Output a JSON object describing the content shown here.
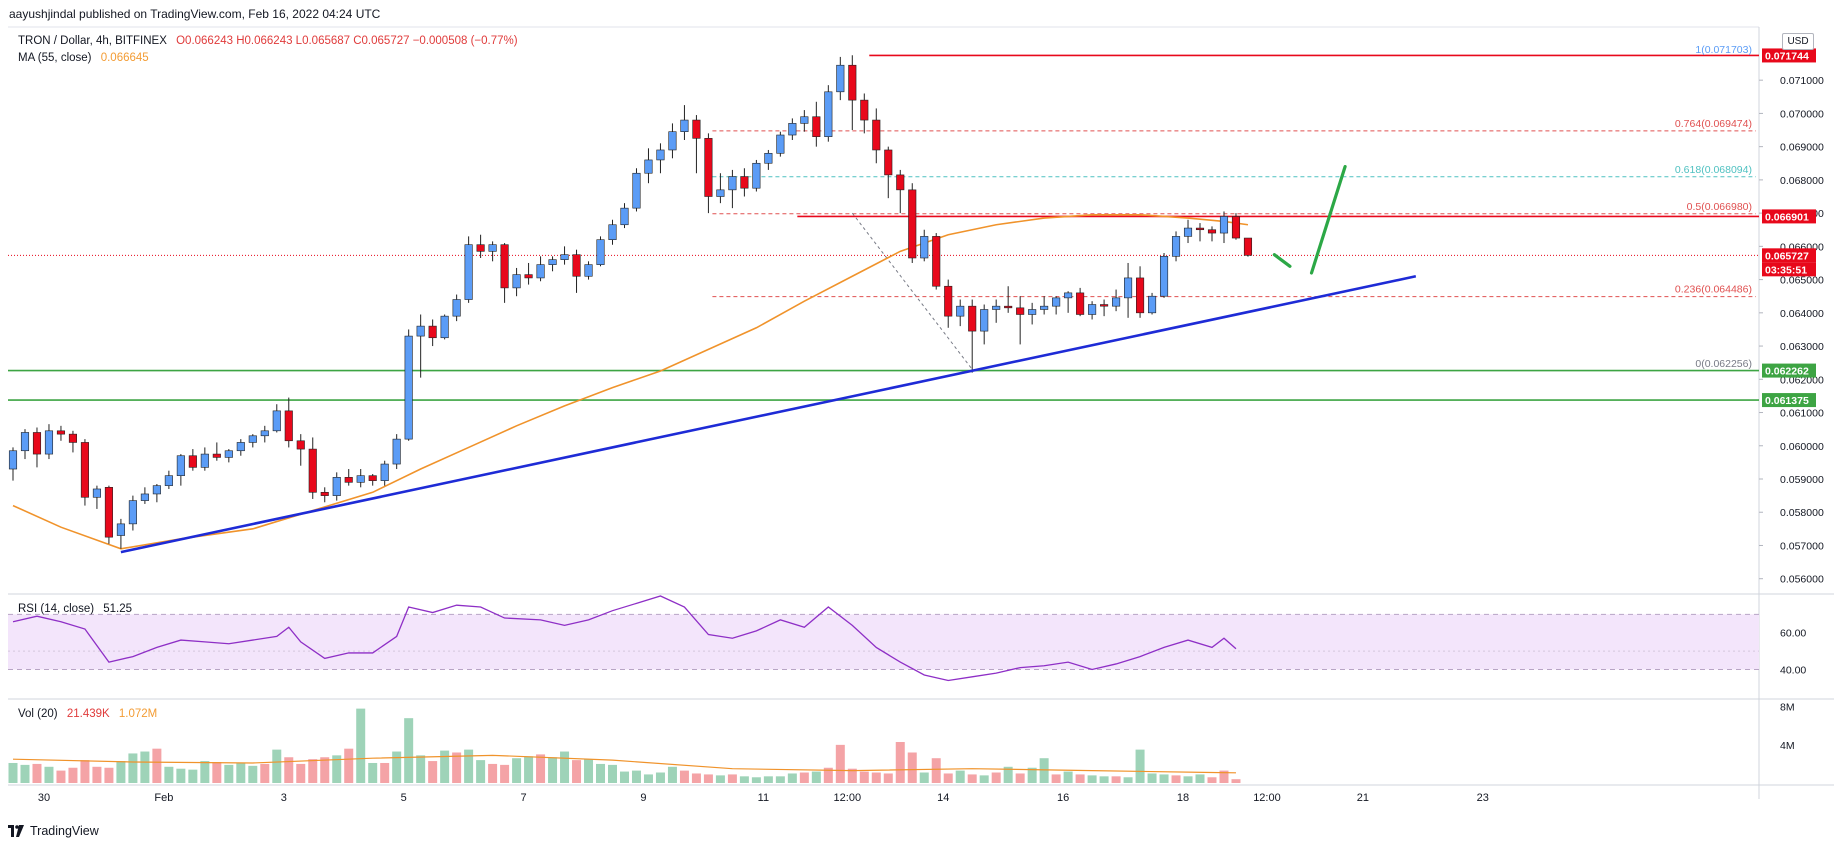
{
  "header": {
    "publisher_line": "aayushjindal published on TradingView.com, Feb 16, 2022 04:24 UTC"
  },
  "legend": {
    "symbol": "TRON / Dollar, 4h, BITFINEX",
    "ohlc": "O0.066243 H0.066243 L0.065687 C0.065727 −0.000508 (−0.77%)",
    "ma_label": "MA (55, close)",
    "ma_value": "0.066645",
    "rsi_label": "RSI (14, close)",
    "rsi_value": "51.25",
    "vol_label": "Vol (20)",
    "vol_value": "21.439K",
    "vol_ma_value": "1.072M"
  },
  "currency_button": "USD",
  "footer": {
    "brand": "TradingView"
  },
  "colors": {
    "up": "#5b9cf6",
    "down": "#e8081b",
    "ma": "#f0932b",
    "trendline": "#1e2bd6",
    "horizontal_red": "#e8081b",
    "horizontal_green": "#3da443",
    "fib_red": "#e05050",
    "fib_teal": "#4fc1c1",
    "rsi_line": "#8e2fc6",
    "rsi_band": "#f3e5fb",
    "vol_up": "#9ed3b8",
    "vol_down": "#f4a3a6",
    "arrow": "#2ca846"
  },
  "chart_data": {
    "type": "candlestick",
    "title": "TRON / Dollar, 4h, BITFINEX",
    "ylim": [
      0.0556,
      0.0726
    ],
    "y_ticks": [
      "0.071000",
      "0.070000",
      "0.069000",
      "0.068000",
      "0.067000",
      "0.066000",
      "0.065000",
      "0.064000",
      "0.063000",
      "0.062000",
      "0.061000",
      "0.060000",
      "0.059000",
      "0.058000",
      "0.057000",
      "0.056000"
    ],
    "x_ticks": [
      "30",
      "Feb",
      "3",
      "5",
      "7",
      "9",
      "11",
      "12:00",
      "14",
      "16",
      "18",
      "12:00",
      "21",
      "23"
    ],
    "price_labels": [
      {
        "value": "0.071744",
        "color": "#e8081b"
      },
      {
        "value": "0.066901",
        "color": "#e8081b"
      },
      {
        "value": "0.065727",
        "color": "#e8081b"
      },
      {
        "value": "03:35:51",
        "color": "#e8081b"
      },
      {
        "value": "0.062262",
        "color": "#3da443"
      },
      {
        "value": "0.061375",
        "color": "#3da443"
      }
    ],
    "fib_levels": [
      {
        "ratio": "1",
        "text": "1(0.071703)",
        "price": 0.071703,
        "color": "#5b9cf6"
      },
      {
        "ratio": "0.764",
        "text": "0.764(0.069474)",
        "price": 0.069474,
        "color": "#e05050"
      },
      {
        "ratio": "0.618",
        "text": "0.618(0.068094)",
        "price": 0.068094,
        "color": "#4fc1c1"
      },
      {
        "ratio": "0.5",
        "text": "0.5(0.066980)",
        "price": 0.06698,
        "color": "#e05050"
      },
      {
        "ratio": "0.236",
        "text": "0.236(0.064486)",
        "price": 0.064486,
        "color": "#e05050"
      },
      {
        "ratio": "0",
        "text": "0(0.062256)",
        "price": 0.062256,
        "color": "#787b86"
      }
    ],
    "horizontal_lines": [
      {
        "price": 0.071744,
        "color": "#e8081b",
        "start_bar": 72
      },
      {
        "price": 0.066901,
        "color": "#e8081b",
        "start_bar": 66
      },
      {
        "price": 0.062262,
        "color": "#3da443",
        "start_bar": 0
      },
      {
        "price": 0.061375,
        "color": "#3da443",
        "start_bar": 0
      }
    ],
    "trendline": {
      "from": {
        "bar": 9,
        "price": 0.0568
      },
      "to": {
        "bar": 117,
        "price": 0.0651
      }
    },
    "candles": [
      [
        0.0593,
        0.05995,
        0.05895,
        0.05985
      ],
      [
        0.05985,
        0.0605,
        0.0596,
        0.0604
      ],
      [
        0.0604,
        0.06055,
        0.05935,
        0.05975
      ],
      [
        0.05975,
        0.06065,
        0.0596,
        0.06045
      ],
      [
        0.06045,
        0.0606,
        0.06015,
        0.06035
      ],
      [
        0.06035,
        0.06045,
        0.0598,
        0.0601
      ],
      [
        0.0601,
        0.0602,
        0.0582,
        0.05845
      ],
      [
        0.05845,
        0.0588,
        0.0581,
        0.0587
      ],
      [
        0.05875,
        0.0588,
        0.05705,
        0.05725
      ],
      [
        0.0573,
        0.0578,
        0.0569,
        0.05765
      ],
      [
        0.05765,
        0.0585,
        0.05745,
        0.05835
      ],
      [
        0.05835,
        0.05875,
        0.05825,
        0.05855
      ],
      [
        0.05855,
        0.05885,
        0.0583,
        0.0588
      ],
      [
        0.0588,
        0.05925,
        0.0587,
        0.0591
      ],
      [
        0.0591,
        0.05975,
        0.0588,
        0.0597
      ],
      [
        0.0597,
        0.0599,
        0.05925,
        0.05935
      ],
      [
        0.05935,
        0.05995,
        0.05925,
        0.05975
      ],
      [
        0.05975,
        0.0601,
        0.05955,
        0.05965
      ],
      [
        0.05965,
        0.0599,
        0.0595,
        0.05985
      ],
      [
        0.05985,
        0.0602,
        0.0597,
        0.0601
      ],
      [
        0.0601,
        0.06035,
        0.05995,
        0.0603
      ],
      [
        0.0603,
        0.0606,
        0.0601,
        0.06045
      ],
      [
        0.06045,
        0.06125,
        0.0604,
        0.06105
      ],
      [
        0.06105,
        0.06145,
        0.05995,
        0.06015
      ],
      [
        0.06015,
        0.06035,
        0.0594,
        0.0599
      ],
      [
        0.0599,
        0.06025,
        0.0584,
        0.0586
      ],
      [
        0.0586,
        0.05875,
        0.0583,
        0.0585
      ],
      [
        0.0585,
        0.0592,
        0.05835,
        0.05905
      ],
      [
        0.05905,
        0.0593,
        0.0588,
        0.0589
      ],
      [
        0.0589,
        0.0593,
        0.05875,
        0.0591
      ],
      [
        0.0591,
        0.05915,
        0.0588,
        0.05895
      ],
      [
        0.05895,
        0.05955,
        0.0588,
        0.05945
      ],
      [
        0.05945,
        0.06035,
        0.0593,
        0.0602
      ],
      [
        0.0602,
        0.0635,
        0.06015,
        0.0633
      ],
      [
        0.0633,
        0.06395,
        0.06205,
        0.0636
      ],
      [
        0.0636,
        0.0638,
        0.063,
        0.06325
      ],
      [
        0.06325,
        0.06395,
        0.0632,
        0.0639
      ],
      [
        0.0639,
        0.06455,
        0.06375,
        0.0644
      ],
      [
        0.0644,
        0.0663,
        0.0643,
        0.06605
      ],
      [
        0.06605,
        0.06635,
        0.06565,
        0.06585
      ],
      [
        0.06585,
        0.06615,
        0.06555,
        0.06605
      ],
      [
        0.06605,
        0.0661,
        0.0643,
        0.06475
      ],
      [
        0.06475,
        0.06535,
        0.0645,
        0.06515
      ],
      [
        0.06515,
        0.0655,
        0.06485,
        0.06505
      ],
      [
        0.06505,
        0.0657,
        0.06495,
        0.06545
      ],
      [
        0.06545,
        0.0657,
        0.06525,
        0.0656
      ],
      [
        0.0656,
        0.066,
        0.06545,
        0.06575
      ],
      [
        0.06575,
        0.0659,
        0.0646,
        0.0651
      ],
      [
        0.0651,
        0.06555,
        0.065,
        0.06545
      ],
      [
        0.06545,
        0.0663,
        0.0654,
        0.0662
      ],
      [
        0.0662,
        0.0668,
        0.06605,
        0.06665
      ],
      [
        0.06665,
        0.0673,
        0.06655,
        0.06715
      ],
      [
        0.06715,
        0.06835,
        0.06705,
        0.0682
      ],
      [
        0.0682,
        0.06895,
        0.0679,
        0.0686
      ],
      [
        0.0686,
        0.0691,
        0.0682,
        0.0689
      ],
      [
        0.0689,
        0.0697,
        0.06865,
        0.06945
      ],
      [
        0.06945,
        0.07025,
        0.0692,
        0.0698
      ],
      [
        0.0698,
        0.06995,
        0.0682,
        0.06925
      ],
      [
        0.06925,
        0.0694,
        0.067,
        0.0675
      ],
      [
        0.0675,
        0.0682,
        0.0673,
        0.0677
      ],
      [
        0.0677,
        0.0683,
        0.06715,
        0.0681
      ],
      [
        0.0681,
        0.06835,
        0.0675,
        0.06775
      ],
      [
        0.06775,
        0.0686,
        0.06765,
        0.0685
      ],
      [
        0.0685,
        0.0689,
        0.0683,
        0.0688
      ],
      [
        0.0688,
        0.06945,
        0.0687,
        0.06935
      ],
      [
        0.06935,
        0.06985,
        0.0692,
        0.0697
      ],
      [
        0.0697,
        0.0701,
        0.06945,
        0.0699
      ],
      [
        0.0699,
        0.07035,
        0.069,
        0.0693
      ],
      [
        0.0693,
        0.07085,
        0.06915,
        0.07065
      ],
      [
        0.07065,
        0.0717,
        0.0704,
        0.07145
      ],
      [
        0.07145,
        0.07175,
        0.0695,
        0.0704
      ],
      [
        0.0704,
        0.0706,
        0.0694,
        0.0698
      ],
      [
        0.0698,
        0.07015,
        0.0685,
        0.0689
      ],
      [
        0.0689,
        0.069,
        0.06745,
        0.06815
      ],
      [
        0.06815,
        0.0683,
        0.067,
        0.0677
      ],
      [
        0.0677,
        0.0679,
        0.0655,
        0.06565
      ],
      [
        0.06565,
        0.0665,
        0.06555,
        0.0663
      ],
      [
        0.0663,
        0.0664,
        0.0647,
        0.0648
      ],
      [
        0.0648,
        0.065,
        0.06355,
        0.0639
      ],
      [
        0.0639,
        0.0644,
        0.0636,
        0.0642
      ],
      [
        0.0642,
        0.0644,
        0.0622,
        0.06345
      ],
      [
        0.06345,
        0.06425,
        0.06305,
        0.0641
      ],
      [
        0.0641,
        0.0644,
        0.0637,
        0.0642
      ],
      [
        0.0642,
        0.0648,
        0.064,
        0.06415
      ],
      [
        0.06415,
        0.0645,
        0.06305,
        0.06395
      ],
      [
        0.06395,
        0.0643,
        0.06365,
        0.0641
      ],
      [
        0.0641,
        0.0645,
        0.06395,
        0.0642
      ],
      [
        0.0642,
        0.0645,
        0.06395,
        0.06445
      ],
      [
        0.06445,
        0.06465,
        0.064,
        0.0646
      ],
      [
        0.0646,
        0.06475,
        0.0639,
        0.06395
      ],
      [
        0.06395,
        0.06435,
        0.0638,
        0.06425
      ],
      [
        0.06425,
        0.0644,
        0.0639,
        0.0642
      ],
      [
        0.0642,
        0.0647,
        0.06405,
        0.06445
      ],
      [
        0.06445,
        0.0655,
        0.06385,
        0.06505
      ],
      [
        0.06505,
        0.0654,
        0.06385,
        0.064
      ],
      [
        0.064,
        0.0646,
        0.06395,
        0.0645
      ],
      [
        0.0645,
        0.0658,
        0.06445,
        0.0657
      ],
      [
        0.0657,
        0.06645,
        0.06555,
        0.0663
      ],
      [
        0.0663,
        0.0668,
        0.0661,
        0.06655
      ],
      [
        0.06655,
        0.0667,
        0.06615,
        0.0665
      ],
      [
        0.0665,
        0.0666,
        0.06615,
        0.0664
      ],
      [
        0.0664,
        0.06705,
        0.0661,
        0.0669
      ],
      [
        0.0669,
        0.067,
        0.0662,
        0.06625
      ],
      [
        0.06625,
        0.06625,
        0.06569,
        0.06573
      ]
    ],
    "ma": [
      [
        0,
        0.0582
      ],
      [
        4,
        0.05755
      ],
      [
        9,
        0.0569
      ],
      [
        14,
        0.0572
      ],
      [
        20,
        0.0575
      ],
      [
        25,
        0.05805
      ],
      [
        30,
        0.0586
      ],
      [
        34,
        0.0593
      ],
      [
        38,
        0.05995
      ],
      [
        42,
        0.0606
      ],
      [
        46,
        0.0612
      ],
      [
        50,
        0.06175
      ],
      [
        54,
        0.06225
      ],
      [
        58,
        0.0629
      ],
      [
        62,
        0.06355
      ],
      [
        66,
        0.06435
      ],
      [
        70,
        0.0651
      ],
      [
        74,
        0.06585
      ],
      [
        78,
        0.06635
      ],
      [
        82,
        0.06665
      ],
      [
        86,
        0.06685
      ],
      [
        90,
        0.06695
      ],
      [
        94,
        0.06695
      ],
      [
        98,
        0.06685
      ],
      [
        101,
        0.06675
      ],
      [
        103,
        0.06665
      ]
    ],
    "arrows": [
      {
        "from": {
          "bar": 105.2,
          "price": 0.06575
        },
        "to": {
          "bar": 106.5,
          "price": 0.0654
        }
      },
      {
        "from": {
          "bar": 108.3,
          "price": 0.0652
        },
        "to": {
          "bar": 111.1,
          "price": 0.0684
        }
      }
    ],
    "rsi": {
      "label": "RSI (14, close)",
      "value": "51.25",
      "band": [
        40,
        70
      ],
      "ticks": [
        "60.00",
        "40.00"
      ],
      "points": [
        [
          0,
          66
        ],
        [
          2,
          69
        ],
        [
          4,
          66
        ],
        [
          6,
          62
        ],
        [
          8,
          44
        ],
        [
          10,
          47
        ],
        [
          12,
          52
        ],
        [
          14,
          56
        ],
        [
          16,
          55
        ],
        [
          18,
          54
        ],
        [
          20,
          56
        ],
        [
          22,
          58
        ],
        [
          23,
          63
        ],
        [
          24,
          55
        ],
        [
          26,
          46
        ],
        [
          28,
          49
        ],
        [
          30,
          49
        ],
        [
          32,
          58
        ],
        [
          33,
          74
        ],
        [
          35,
          71
        ],
        [
          37,
          75
        ],
        [
          39,
          74
        ],
        [
          41,
          68
        ],
        [
          44,
          67
        ],
        [
          46,
          64
        ],
        [
          48,
          67
        ],
        [
          50,
          72
        ],
        [
          52,
          76
        ],
        [
          54,
          80
        ],
        [
          56,
          74
        ],
        [
          58,
          59
        ],
        [
          60,
          57
        ],
        [
          62,
          61
        ],
        [
          64,
          67
        ],
        [
          66,
          63
        ],
        [
          68,
          74
        ],
        [
          70,
          64
        ],
        [
          72,
          52
        ],
        [
          74,
          44
        ],
        [
          76,
          37
        ],
        [
          78,
          34
        ],
        [
          80,
          36
        ],
        [
          82,
          38
        ],
        [
          84,
          41
        ],
        [
          86,
          42
        ],
        [
          88,
          44
        ],
        [
          90,
          40
        ],
        [
          92,
          43
        ],
        [
          94,
          47
        ],
        [
          96,
          52
        ],
        [
          98,
          56
        ],
        [
          100,
          52
        ],
        [
          101,
          57
        ],
        [
          102,
          51.25
        ]
      ]
    },
    "volume": {
      "label": "Vol (20)",
      "value": "21.439K",
      "ma_value": "1.072M",
      "ticks": [
        "8M",
        "4M"
      ],
      "bars": [
        2.1,
        1.9,
        2.0,
        1.7,
        1.3,
        1.6,
        2.4,
        1.7,
        1.6,
        2.3,
        3.1,
        3.3,
        3.6,
        1.7,
        1.5,
        1.4,
        2.3,
        2.2,
        1.9,
        2.1,
        1.8,
        2.0,
        3.5,
        2.7,
        2.0,
        2.5,
        2.7,
        2.9,
        3.6,
        7.8,
        2.1,
        2.1,
        3.3,
        6.8,
        2.9,
        2.3,
        3.4,
        3.2,
        3.5,
        2.4,
        2.0,
        1.9,
        2.6,
        2.8,
        3.0,
        2.7,
        3.3,
        2.4,
        2.5,
        2.0,
        1.9,
        1.2,
        1.3,
        0.9,
        1.1,
        1.7,
        1.3,
        1.0,
        0.9,
        0.8,
        0.9,
        0.7,
        0.6,
        0.7,
        0.7,
        1.0,
        1.1,
        1.2,
        1.6,
        4.0,
        1.5,
        1.2,
        1.1,
        1.0,
        4.3,
        3.2,
        1.1,
        2.6,
        1.0,
        1.3,
        0.9,
        0.8,
        1.1,
        1.7,
        1.0,
        1.6,
        2.6,
        0.9,
        1.2,
        0.9,
        0.8,
        0.7,
        0.7,
        0.6,
        3.5,
        1.0,
        0.9,
        0.8,
        0.7,
        0.9,
        0.6,
        1.3,
        0.4
      ],
      "down": [
        false,
        false,
        true,
        false,
        true,
        true,
        true,
        true,
        true,
        false,
        false,
        false,
        true,
        false,
        false,
        false,
        false,
        true,
        false,
        false,
        false,
        true,
        false,
        true,
        true,
        true,
        true,
        false,
        true,
        false,
        false,
        true,
        false,
        false,
        false,
        true,
        false,
        true,
        false,
        false,
        true,
        true,
        false,
        false,
        true,
        false,
        false,
        true,
        false,
        false,
        false,
        false,
        false,
        false,
        false,
        false,
        true,
        true,
        true,
        false,
        true,
        false,
        false,
        false,
        false,
        false,
        true,
        false,
        true,
        true,
        true,
        true,
        true,
        true,
        true,
        true,
        false,
        true,
        true,
        false,
        true,
        false,
        true,
        false,
        true,
        false,
        false,
        true,
        false,
        true,
        false,
        false,
        true,
        false,
        false,
        false,
        false,
        true,
        false,
        false,
        true,
        true,
        true
      ],
      "ma": [
        [
          0,
          2.5
        ],
        [
          10,
          2.2
        ],
        [
          20,
          2.1
        ],
        [
          30,
          2.6
        ],
        [
          40,
          2.9
        ],
        [
          50,
          2.4
        ],
        [
          60,
          1.5
        ],
        [
          70,
          1.3
        ],
        [
          80,
          1.5
        ],
        [
          90,
          1.3
        ],
        [
          100,
          1.1
        ],
        [
          102,
          1.07
        ]
      ]
    }
  }
}
